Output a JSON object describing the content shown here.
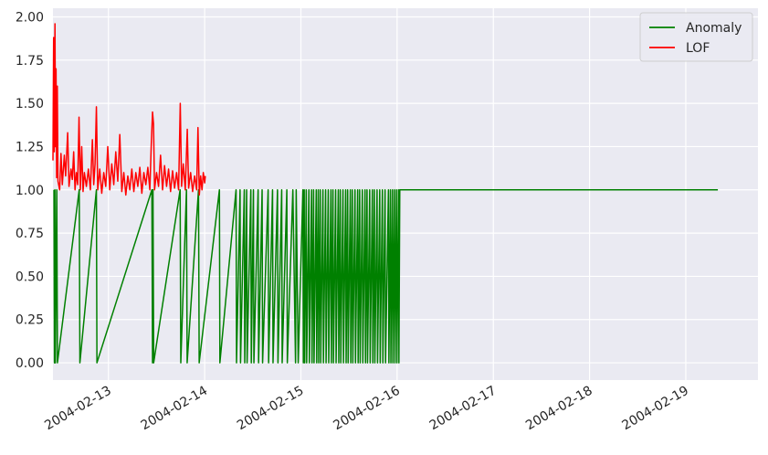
{
  "chart_data": {
    "type": "line",
    "title": "",
    "xlabel": "",
    "ylabel": "",
    "x_axis": {
      "type": "date",
      "range": [
        "2004-02-12T10:10",
        "2004-02-19T18:00"
      ],
      "ticks": [
        "2004-02-13",
        "2004-02-14",
        "2004-02-15",
        "2004-02-16",
        "2004-02-17",
        "2004-02-18",
        "2004-02-19"
      ]
    },
    "y_axis": {
      "range": [
        -0.1,
        2.05
      ],
      "ticks": [
        "0.00",
        "0.25",
        "0.50",
        "0.75",
        "1.00",
        "1.25",
        "1.50",
        "1.75",
        "2.00"
      ]
    },
    "grid": true,
    "legend": {
      "position": "top-right"
    },
    "series": [
      {
        "name": "Anomaly",
        "color": "#008000",
        "points": [
          [
            "2004-02-12T10:25",
            1
          ],
          [
            "2004-02-12T10:32",
            0
          ],
          [
            "2004-02-12T10:39",
            1
          ],
          [
            "2004-02-12T10:46",
            0
          ],
          [
            "2004-02-12T11:07",
            1
          ],
          [
            "2004-02-12T11:17",
            0
          ],
          [
            "2004-02-12T16:43",
            1
          ],
          [
            "2004-02-12T16:53",
            0
          ],
          [
            "2004-02-12T21:00",
            1
          ],
          [
            "2004-02-12T21:08",
            0
          ],
          [
            "2004-02-13T10:50",
            1
          ],
          [
            "2004-02-13T11:00",
            0
          ],
          [
            "2004-02-13T11:07",
            1
          ],
          [
            "2004-02-13T11:17",
            0
          ],
          [
            "2004-02-13T17:53",
            1
          ],
          [
            "2004-02-13T18:03",
            0
          ],
          [
            "2004-02-13T19:28",
            1
          ],
          [
            "2004-02-13T19:38",
            0
          ],
          [
            "2004-02-13T22:28",
            1
          ],
          [
            "2004-02-13T22:38",
            0
          ],
          [
            "2004-02-14T03:41",
            1
          ],
          [
            "2004-02-14T03:48",
            0
          ],
          [
            "2004-02-14T07:50",
            1
          ],
          [
            "2004-02-14T07:57",
            0
          ],
          [
            "2004-02-14T08:50",
            1
          ],
          [
            "2004-02-14T08:57",
            0
          ],
          [
            "2004-02-14T09:53",
            1
          ],
          [
            "2004-02-14T10:00",
            0
          ],
          [
            "2004-02-14T10:28",
            1
          ],
          [
            "2004-02-14T10:35",
            0
          ],
          [
            "2004-02-14T11:31",
            1
          ],
          [
            "2004-02-14T11:38",
            0
          ],
          [
            "2004-02-14T12:10",
            1
          ],
          [
            "2004-02-14T12:17",
            0
          ],
          [
            "2004-02-14T13:20",
            1
          ],
          [
            "2004-02-14T13:27",
            0
          ],
          [
            "2004-02-14T14:20",
            1
          ],
          [
            "2004-02-14T14:27",
            0
          ],
          [
            "2004-02-14T15:50",
            1
          ],
          [
            "2004-02-14T15:57",
            0
          ],
          [
            "2004-02-14T16:56",
            1
          ],
          [
            "2004-02-14T17:03",
            0
          ],
          [
            "2004-02-14T18:10",
            1
          ],
          [
            "2004-02-14T18:17",
            0
          ],
          [
            "2004-02-14T19:13",
            1
          ],
          [
            "2004-02-14T19:20",
            0
          ],
          [
            "2004-02-14T20:30",
            1
          ],
          [
            "2004-02-14T20:37",
            0
          ],
          [
            "2004-02-14T22:00",
            1
          ],
          [
            "2004-02-14T22:40",
            0
          ],
          [
            "2004-02-14T22:50",
            1
          ],
          [
            "2004-02-14T23:20",
            0
          ],
          [
            "2004-02-15T00:30",
            1
          ],
          [
            "2004-02-15T00:37",
            0
          ],
          [
            "2004-02-15T00:50",
            1
          ],
          [
            "2004-02-15T00:57",
            0
          ],
          [
            "2004-02-15T01:20",
            1
          ],
          [
            "2004-02-15T01:27",
            0
          ],
          [
            "2004-02-15T02:00",
            1
          ],
          [
            "2004-02-15T02:07",
            0
          ],
          [
            "2004-02-15T02:40",
            1
          ],
          [
            "2004-02-15T02:47",
            0
          ],
          [
            "2004-02-15T03:10",
            1
          ],
          [
            "2004-02-15T03:17",
            0
          ],
          [
            "2004-02-15T03:50",
            1
          ],
          [
            "2004-02-15T03:57",
            0
          ],
          [
            "2004-02-15T04:20",
            1
          ],
          [
            "2004-02-15T04:27",
            0
          ],
          [
            "2004-02-15T04:50",
            1
          ],
          [
            "2004-02-15T04:57",
            0
          ],
          [
            "2004-02-15T05:30",
            1
          ],
          [
            "2004-02-15T05:37",
            0
          ],
          [
            "2004-02-15T06:10",
            1
          ],
          [
            "2004-02-15T06:17",
            0
          ],
          [
            "2004-02-15T06:50",
            1
          ],
          [
            "2004-02-15T06:57",
            0
          ],
          [
            "2004-02-15T07:30",
            1
          ],
          [
            "2004-02-15T07:37",
            0
          ],
          [
            "2004-02-15T08:00",
            1
          ],
          [
            "2004-02-15T08:07",
            0
          ],
          [
            "2004-02-15T08:40",
            1
          ],
          [
            "2004-02-15T08:47",
            0
          ],
          [
            "2004-02-15T09:20",
            1
          ],
          [
            "2004-02-15T09:27",
            0
          ],
          [
            "2004-02-15T09:50",
            1
          ],
          [
            "2004-02-15T09:57",
            0
          ],
          [
            "2004-02-15T10:30",
            1
          ],
          [
            "2004-02-15T10:37",
            0
          ],
          [
            "2004-02-15T11:10",
            1
          ],
          [
            "2004-02-15T11:17",
            0
          ],
          [
            "2004-02-15T11:40",
            1
          ],
          [
            "2004-02-15T11:47",
            0
          ],
          [
            "2004-02-15T12:20",
            1
          ],
          [
            "2004-02-15T12:27",
            0
          ],
          [
            "2004-02-15T12:50",
            1
          ],
          [
            "2004-02-15T12:57",
            0
          ],
          [
            "2004-02-15T13:30",
            1
          ],
          [
            "2004-02-15T13:37",
            0
          ],
          [
            "2004-02-15T14:10",
            1
          ],
          [
            "2004-02-15T14:17",
            0
          ],
          [
            "2004-02-15T14:40",
            1
          ],
          [
            "2004-02-15T14:47",
            0
          ],
          [
            "2004-02-15T15:20",
            1
          ],
          [
            "2004-02-15T15:27",
            0
          ],
          [
            "2004-02-15T16:00",
            1
          ],
          [
            "2004-02-15T16:07",
            0
          ],
          [
            "2004-02-15T16:30",
            1
          ],
          [
            "2004-02-15T16:37",
            0
          ],
          [
            "2004-02-15T17:10",
            1
          ],
          [
            "2004-02-15T17:17",
            0
          ],
          [
            "2004-02-15T17:50",
            1
          ],
          [
            "2004-02-15T17:57",
            0
          ],
          [
            "2004-02-15T18:20",
            1
          ],
          [
            "2004-02-15T18:27",
            0
          ],
          [
            "2004-02-15T19:00",
            1
          ],
          [
            "2004-02-15T19:07",
            0
          ],
          [
            "2004-02-15T19:40",
            1
          ],
          [
            "2004-02-15T19:47",
            0
          ],
          [
            "2004-02-15T20:20",
            1
          ],
          [
            "2004-02-15T20:27",
            0
          ],
          [
            "2004-02-15T21:00",
            1
          ],
          [
            "2004-02-15T21:07",
            0
          ],
          [
            "2004-02-15T21:50",
            1
          ],
          [
            "2004-02-15T21:57",
            0
          ],
          [
            "2004-02-15T22:20",
            1
          ],
          [
            "2004-02-15T22:27",
            0
          ],
          [
            "2004-02-15T22:50",
            1
          ],
          [
            "2004-02-15T22:57",
            0
          ],
          [
            "2004-02-15T23:20",
            1
          ],
          [
            "2004-02-15T23:27",
            0
          ],
          [
            "2004-02-15T23:50",
            1
          ],
          [
            "2004-02-15T23:57",
            0
          ],
          [
            "2004-02-16T00:20",
            1
          ],
          [
            "2004-02-16T00:27",
            0
          ],
          [
            "2004-02-16T00:40",
            1
          ],
          [
            "2004-02-19T08:00",
            1
          ]
        ]
      },
      {
        "name": "LOF",
        "color": "#ff0000",
        "points": [
          [
            "2004-02-12T10:10",
            1.17
          ],
          [
            "2004-02-12T10:20",
            1.88
          ],
          [
            "2004-02-12T10:30",
            1.22
          ],
          [
            "2004-02-12T10:40",
            1.96
          ],
          [
            "2004-02-12T10:48",
            1.25
          ],
          [
            "2004-02-12T10:56",
            1.7
          ],
          [
            "2004-02-12T11:05",
            1.07
          ],
          [
            "2004-02-12T11:15",
            1.6
          ],
          [
            "2004-02-12T11:25",
            1.05
          ],
          [
            "2004-02-12T11:50",
            1.0
          ],
          [
            "2004-02-12T12:10",
            1.21
          ],
          [
            "2004-02-12T12:30",
            1.03
          ],
          [
            "2004-02-12T13:00",
            1.2
          ],
          [
            "2004-02-12T13:20",
            1.08
          ],
          [
            "2004-02-12T13:50",
            1.33
          ],
          [
            "2004-02-12T14:10",
            1.02
          ],
          [
            "2004-02-12T14:40",
            1.12
          ],
          [
            "2004-02-12T15:00",
            1.06
          ],
          [
            "2004-02-12T15:20",
            1.22
          ],
          [
            "2004-02-12T15:40",
            1.0
          ],
          [
            "2004-02-12T16:00",
            1.1
          ],
          [
            "2004-02-12T16:20",
            1.03
          ],
          [
            "2004-02-12T16:40",
            1.42
          ],
          [
            "2004-02-12T17:00",
            1.0
          ],
          [
            "2004-02-12T17:20",
            1.25
          ],
          [
            "2004-02-12T17:40",
            0.99
          ],
          [
            "2004-02-12T18:00",
            1.1
          ],
          [
            "2004-02-12T18:30",
            1.02
          ],
          [
            "2004-02-12T19:00",
            1.12
          ],
          [
            "2004-02-12T19:30",
            1.0
          ],
          [
            "2004-02-12T20:00",
            1.29
          ],
          [
            "2004-02-12T20:20",
            1.03
          ],
          [
            "2004-02-12T20:40",
            1.15
          ],
          [
            "2004-02-12T21:00",
            1.48
          ],
          [
            "2004-02-12T21:20",
            1.0
          ],
          [
            "2004-02-12T21:50",
            1.12
          ],
          [
            "2004-02-12T22:20",
            0.98
          ],
          [
            "2004-02-12T22:50",
            1.1
          ],
          [
            "2004-02-12T23:20",
            1.02
          ],
          [
            "2004-02-12T23:50",
            1.25
          ],
          [
            "2004-02-13T00:20",
            1.0
          ],
          [
            "2004-02-13T00:50",
            1.15
          ],
          [
            "2004-02-13T01:20",
            1.03
          ],
          [
            "2004-02-13T01:50",
            1.22
          ],
          [
            "2004-02-13T02:20",
            1.05
          ],
          [
            "2004-02-13T02:50",
            1.32
          ],
          [
            "2004-02-13T03:20",
            0.99
          ],
          [
            "2004-02-13T03:50",
            1.1
          ],
          [
            "2004-02-13T04:20",
            0.97
          ],
          [
            "2004-02-13T04:50",
            1.08
          ],
          [
            "2004-02-13T05:20",
            1.0
          ],
          [
            "2004-02-13T05:50",
            1.12
          ],
          [
            "2004-02-13T06:20",
            0.99
          ],
          [
            "2004-02-13T06:50",
            1.1
          ],
          [
            "2004-02-13T07:20",
            1.02
          ],
          [
            "2004-02-13T07:50",
            1.13
          ],
          [
            "2004-02-13T08:20",
            0.98
          ],
          [
            "2004-02-13T08:50",
            1.1
          ],
          [
            "2004-02-13T09:20",
            1.03
          ],
          [
            "2004-02-13T09:50",
            1.13
          ],
          [
            "2004-02-13T10:20",
            1.0
          ],
          [
            "2004-02-13T10:40",
            1.25
          ],
          [
            "2004-02-13T11:00",
            1.45
          ],
          [
            "2004-02-13T11:15",
            1.38
          ],
          [
            "2004-02-13T11:30",
            1.0
          ],
          [
            "2004-02-13T12:00",
            1.1
          ],
          [
            "2004-02-13T12:30",
            1.02
          ],
          [
            "2004-02-13T13:00",
            1.2
          ],
          [
            "2004-02-13T13:30",
            1.0
          ],
          [
            "2004-02-13T14:00",
            1.14
          ],
          [
            "2004-02-13T14:30",
            1.02
          ],
          [
            "2004-02-13T15:00",
            1.12
          ],
          [
            "2004-02-13T15:30",
            0.99
          ],
          [
            "2004-02-13T16:00",
            1.11
          ],
          [
            "2004-02-13T16:30",
            1.01
          ],
          [
            "2004-02-13T17:00",
            1.1
          ],
          [
            "2004-02-13T17:30",
            1.0
          ],
          [
            "2004-02-13T17:55",
            1.5
          ],
          [
            "2004-02-13T18:15",
            1.02
          ],
          [
            "2004-02-13T18:40",
            1.15
          ],
          [
            "2004-02-13T19:10",
            1.0
          ],
          [
            "2004-02-13T19:40",
            1.35
          ],
          [
            "2004-02-13T20:00",
            1.01
          ],
          [
            "2004-02-13T20:30",
            1.1
          ],
          [
            "2004-02-13T21:00",
            0.99
          ],
          [
            "2004-02-13T21:30",
            1.08
          ],
          [
            "2004-02-13T22:00",
            1.0
          ],
          [
            "2004-02-13T22:20",
            1.36
          ],
          [
            "2004-02-13T22:40",
            0.97
          ],
          [
            "2004-02-13T23:00",
            1.08
          ],
          [
            "2004-02-13T23:20",
            1.0
          ],
          [
            "2004-02-13T23:40",
            1.1
          ],
          [
            "2004-02-14T00:00",
            1.04
          ],
          [
            "2004-02-14T00:10",
            1.08
          ]
        ]
      }
    ]
  }
}
